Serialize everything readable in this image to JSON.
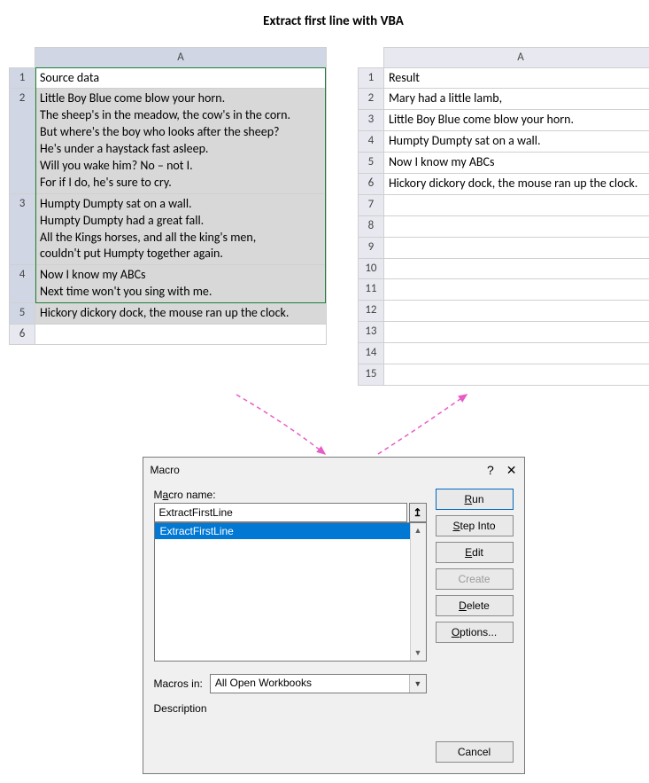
{
  "title": "Extract first line with VBA",
  "leftSheet": {
    "colHeader": "A",
    "header": "Source data",
    "rows": [
      {
        "num": "1",
        "header": true,
        "text": "Source data"
      },
      {
        "num": "2",
        "text": "Little Boy Blue come blow your horn.\nThe sheep's in the meadow, the cow's in the corn.\nBut where's the boy who looks after the sheep?\nHe's under a haystack fast asleep.\nWill you wake him? No – not I.\nFor if I do, he's sure to cry."
      },
      {
        "num": "3",
        "text": "Humpty Dumpty sat on a wall.\nHumpty Dumpty had a great fall.\nAll the Kings horses, and all the king's men,\ncouldn't put Humpty together again."
      },
      {
        "num": "4",
        "text": "Now I know my ABCs\nNext time won't you sing with me."
      },
      {
        "num": "5",
        "text": "Hickory dickory dock, the mouse ran up the clock."
      },
      {
        "num": "6",
        "text": ""
      }
    ]
  },
  "rightSheet": {
    "colHeader": "A",
    "rows": [
      {
        "num": "1",
        "header": true,
        "text": "Result"
      },
      {
        "num": "2",
        "text": "Mary had a little lamb,"
      },
      {
        "num": "3",
        "text": "Little Boy Blue come blow your horn."
      },
      {
        "num": "4",
        "text": "Humpty Dumpty sat on a wall."
      },
      {
        "num": "5",
        "text": "Now I know my ABCs"
      },
      {
        "num": "6",
        "text": "Hickory dickory dock, the mouse ran up the clock."
      },
      {
        "num": "7",
        "text": ""
      },
      {
        "num": "8",
        "text": ""
      },
      {
        "num": "9",
        "text": ""
      },
      {
        "num": "10",
        "text": ""
      },
      {
        "num": "11",
        "text": ""
      },
      {
        "num": "12",
        "text": ""
      },
      {
        "num": "13",
        "text": ""
      },
      {
        "num": "14",
        "text": ""
      },
      {
        "num": "15",
        "text": ""
      }
    ]
  },
  "arrows": {
    "color": "#e85cc5"
  },
  "dialog": {
    "title": "Macro",
    "helpGlyph": "?",
    "closeGlyph": "✕",
    "nameLabelPre": "M",
    "nameLabelKey": "a",
    "nameLabelPost": "cro name:",
    "nameValue": "ExtractFirstLine",
    "listSelected": "ExtractFirstLine",
    "buttons": {
      "run": {
        "pre": "",
        "key": "R",
        "post": "un"
      },
      "stepInto": {
        "pre": "",
        "key": "S",
        "post": "tep Into"
      },
      "edit": {
        "pre": "",
        "key": "E",
        "post": "dit"
      },
      "create": {
        "pre": "",
        "key": "C",
        "post": "reate"
      },
      "delete": {
        "pre": "",
        "key": "D",
        "post": "elete"
      },
      "options": {
        "pre": "",
        "key": "O",
        "post": "ptions..."
      }
    },
    "macrosInPre": "M",
    "macrosInKey": "a",
    "macrosInPost": "cros in:",
    "macrosInLabel": "Macros in:",
    "macrosInValue": "All Open Workbooks",
    "descriptionLabel": "Description",
    "cancel": "Cancel"
  }
}
